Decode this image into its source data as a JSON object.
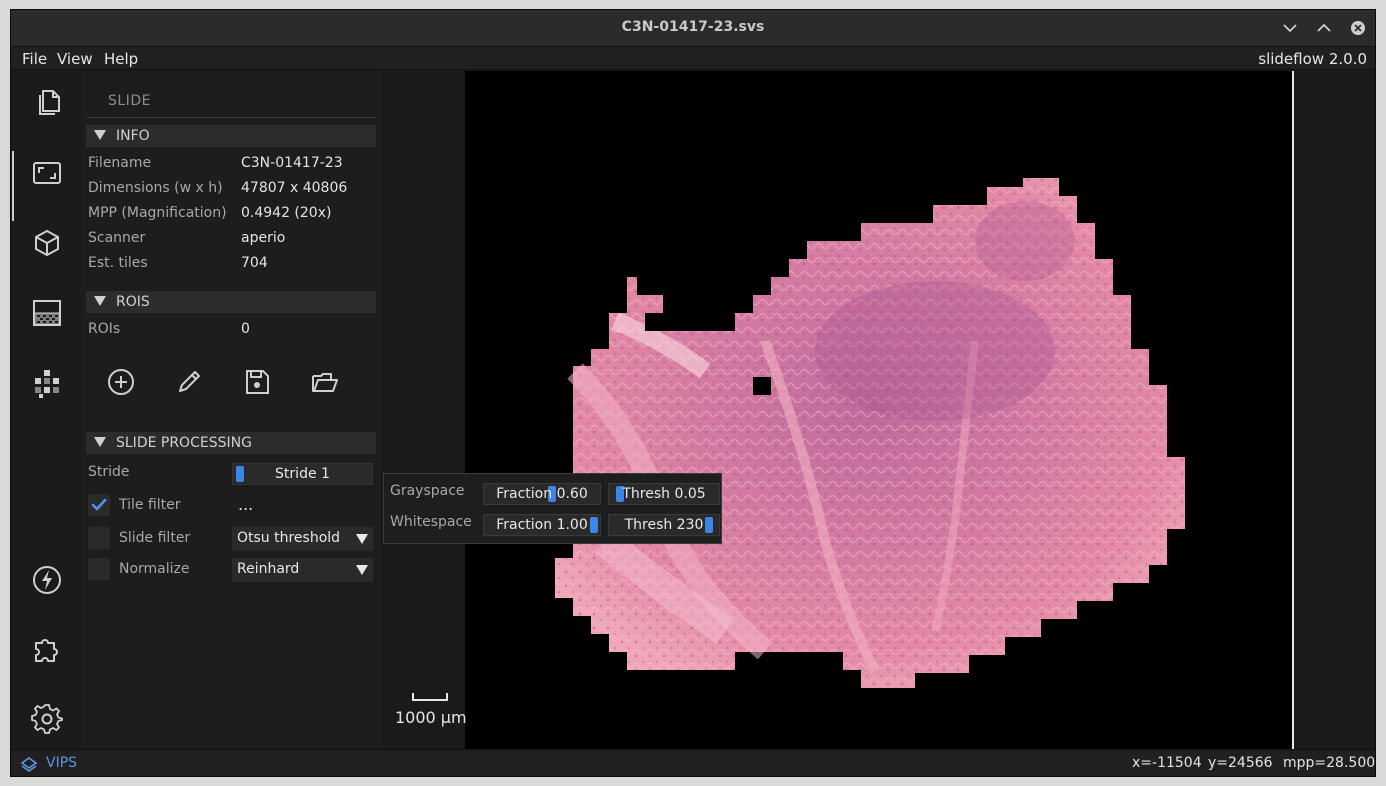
{
  "window": {
    "title": "C3N-01417-23.svs"
  },
  "menu": {
    "items": [
      "File",
      "View",
      "Help"
    ],
    "version": "slideflow 2.0.0"
  },
  "sidebar": {
    "icons": [
      "files-icon",
      "slide-icon",
      "model-icon",
      "heatmap-icon",
      "segment-icon",
      "performance-icon",
      "extensions-icon",
      "settings-icon"
    ],
    "active": "slide-icon"
  },
  "panel": {
    "title": "SLIDE",
    "info": {
      "header": "INFO",
      "rows": [
        {
          "label": "Filename",
          "value": "C3N-01417-23"
        },
        {
          "label": "Dimensions (w x h)",
          "value": "47807 x 40806"
        },
        {
          "label": "MPP (Magnification)",
          "value": "0.4942 (20x)"
        },
        {
          "label": "Scanner",
          "value": "aperio"
        },
        {
          "label": "Est. tiles",
          "value": "704"
        }
      ]
    },
    "rois": {
      "header": "ROIS",
      "label": "ROIs",
      "value": "0",
      "buttons": [
        "add-roi-icon",
        "edit-roi-icon",
        "save-roi-icon",
        "load-roi-icon"
      ]
    },
    "processing": {
      "header": "SLIDE PROCESSING",
      "stride_label": "Stride",
      "stride_value": "Stride 1",
      "stride_fraction": 0.0,
      "tile_filter_label": "Tile filter",
      "tile_filter_checked": true,
      "tile_filter_more": "...",
      "slide_filter_label": "Slide filter",
      "slide_filter_checked": false,
      "slide_filter_value": "Otsu threshold",
      "normalize_label": "Normalize",
      "normalize_checked": false,
      "normalize_value": "Reinhard"
    }
  },
  "tile_filter_popup": {
    "grayspace_label": "Grayspace",
    "grayspace_fraction": "Fraction 0.60",
    "grayspace_fraction_value": 0.6,
    "grayspace_thresh": "Thresh 0.05",
    "grayspace_thresh_value": 0.05,
    "whitespace_label": "Whitespace",
    "whitespace_fraction": "Fraction 1.00",
    "whitespace_fraction_value": 1.0,
    "whitespace_thresh": "Thresh 230",
    "whitespace_thresh_value": 230
  },
  "viewer": {
    "scale_label": "1000 µm"
  },
  "status": {
    "backend": "VIPS",
    "x": "x=-11504",
    "y": "y=24566",
    "mpp": "mpp=28.500"
  },
  "colors": {
    "accent": "#3d85e6",
    "tissue_light": "#f2b6c6",
    "tissue_mid": "#e48aa6",
    "tissue_dark": "#b85b8f"
  }
}
